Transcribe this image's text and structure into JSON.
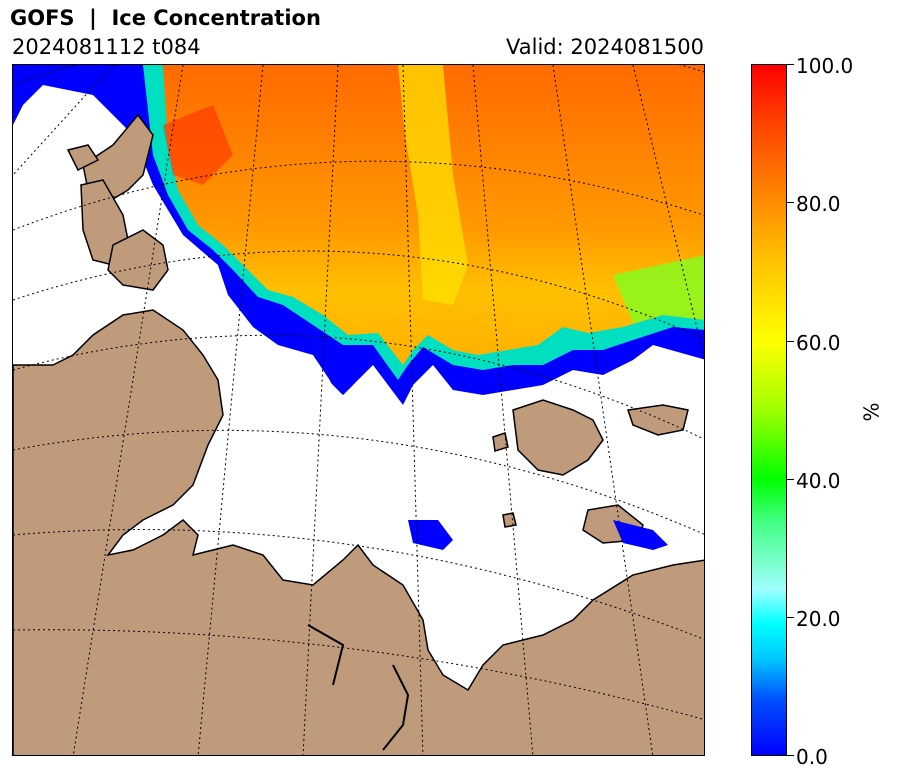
{
  "header": {
    "title": "GOFS  |  Ice Concentration",
    "run": "2024081112 t084",
    "valid": "Valid: 2024081500"
  },
  "colorbar": {
    "unit": "%",
    "ticks": [
      "0.0",
      "20.0",
      "40.0",
      "60.0",
      "80.0",
      "100.0"
    ],
    "min": 0,
    "max": 100,
    "colors": [
      "#0000ff",
      "#00ffff",
      "#00ff00",
      "#ffff00",
      "#ff8000",
      "#ff0000"
    ]
  },
  "map": {
    "land_color": "#bf9b7c",
    "ocean_color": "#ffffff",
    "graticule": "dotted",
    "regions": [
      "land",
      "sea-ice",
      "open-water"
    ]
  }
}
